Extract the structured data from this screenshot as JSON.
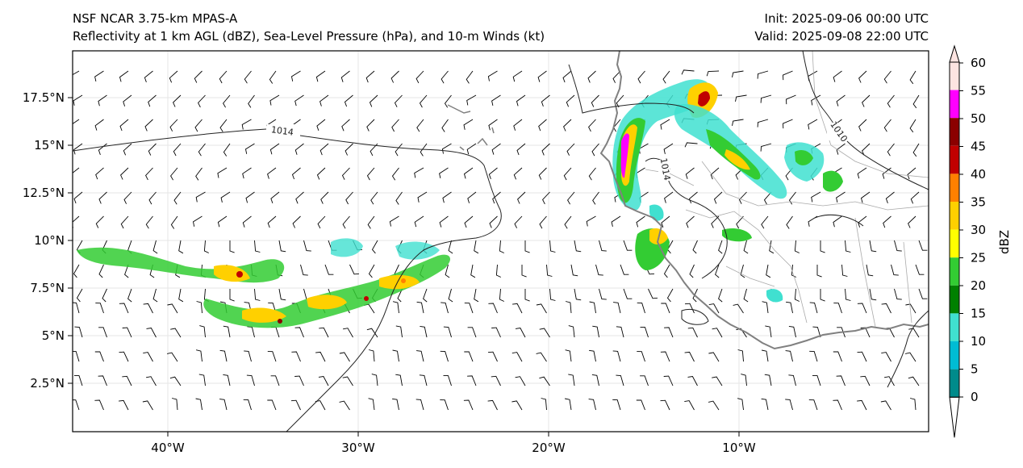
{
  "title": {
    "line1": "NSF NCAR 3.75-km MPAS-A",
    "line2": "Reflectivity at 1 km AGL (dBZ), Sea-Level Pressure (hPa), and 10-m Winds (kt)",
    "init": "Init: 2025-09-06 00:00 UTC",
    "valid": "Valid: 2025-09-08 22:00 UTC"
  },
  "axes": {
    "lat_ticks": [
      "17.5°N",
      "15°N",
      "12.5°N",
      "10°N",
      "7.5°N",
      "5°N",
      "2.5°N"
    ],
    "lon_ticks": [
      "40°W",
      "30°W",
      "20°W",
      "10°W"
    ]
  },
  "isobars": [
    {
      "label": "1014"
    },
    {
      "label": "1014"
    },
    {
      "label": "1010"
    }
  ],
  "colorbar": {
    "label": "dBZ",
    "ticks": [
      "60",
      "55",
      "50",
      "45",
      "40",
      "35",
      "30",
      "25",
      "20",
      "15",
      "10",
      "5",
      "0"
    ],
    "colors": [
      "#fde4e1",
      "#ff00ff",
      "#8b0000",
      "#c00000",
      "#ff8000",
      "#ffd000",
      "#ffff00",
      "#33cc33",
      "#008000",
      "#40e0d0",
      "#00bcd4",
      "#008b8b",
      "#ffffff"
    ]
  },
  "colors": {
    "coastline": "#808080",
    "border": "#aaaaaa",
    "isobar": "#222222",
    "barb": "#000000"
  }
}
